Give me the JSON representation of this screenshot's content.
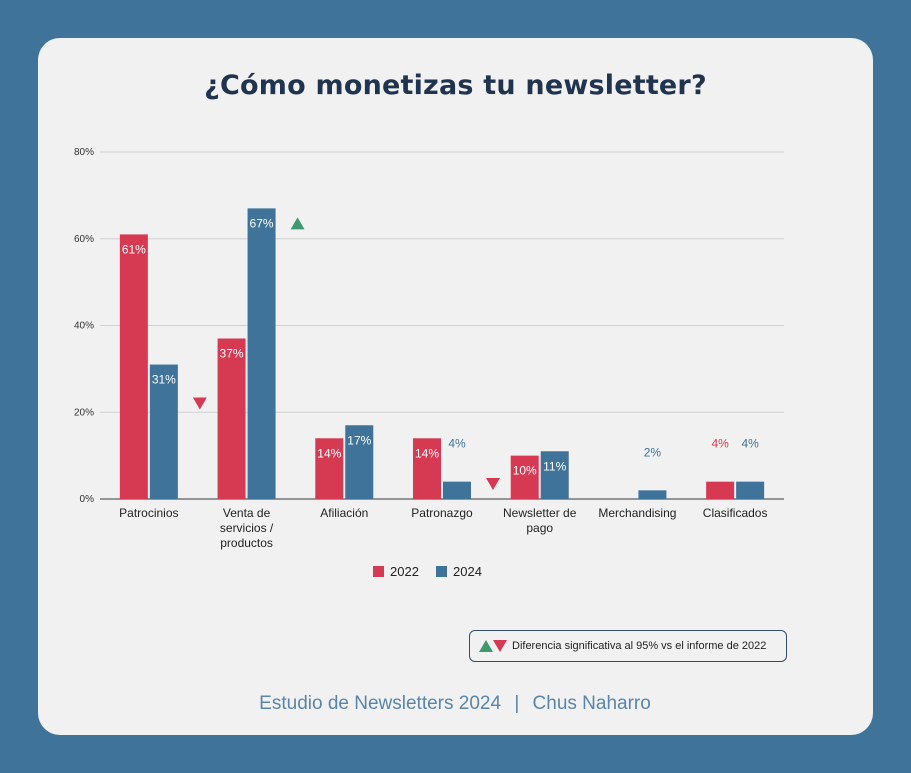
{
  "title": "¿Cómo monetizas tu newsletter?",
  "chart_data": {
    "type": "bar",
    "categories": [
      [
        "Patrocinios"
      ],
      [
        "Venta de",
        "servicios /",
        "productos"
      ],
      [
        "Afiliación"
      ],
      [
        "Patronazgo"
      ],
      [
        "Newsletter de",
        "pago"
      ],
      [
        "Merchandising"
      ],
      [
        "Clasificados"
      ]
    ],
    "series": [
      {
        "name": "2022",
        "color": "#d63a52",
        "values": [
          61,
          37,
          14,
          14,
          10,
          null,
          4
        ],
        "labels": [
          "61%",
          "37%",
          "14%",
          "14%",
          "10%",
          "",
          "4%"
        ]
      },
      {
        "name": "2024",
        "color": "#3f7399",
        "values": [
          31,
          67,
          17,
          4,
          11,
          2,
          4
        ],
        "labels": [
          "31%",
          "67%",
          "17%",
          "4%",
          "11%",
          "2%",
          "4%"
        ]
      }
    ],
    "ylim": [
      0,
      80
    ],
    "yticks": [
      0,
      20,
      40,
      60,
      80
    ],
    "ytick_labels": [
      "0%",
      "20%",
      "40%",
      "60%",
      "80%"
    ],
    "grid": true,
    "legend_position": "bottom",
    "significance_markers": [
      {
        "category_index": 0,
        "direction": "down",
        "color": "#d63a52"
      },
      {
        "category_index": 1,
        "direction": "up",
        "color": "#3e9a6e"
      },
      {
        "category_index": 3,
        "direction": "down",
        "color": "#d63a52"
      }
    ]
  },
  "note": {
    "text": "Diferencia significativa al 95% vs el informe de 2022",
    "up_color": "#3e9a6e",
    "down_color": "#d63a52"
  },
  "footer": {
    "left": "Estudio de Newsletters 2024",
    "separator": "|",
    "right": "Chus Naharro"
  }
}
